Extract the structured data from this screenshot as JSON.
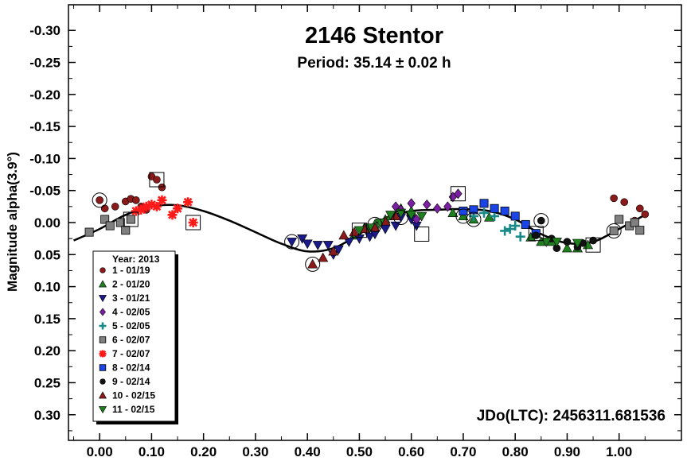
{
  "chart_data": {
    "type": "scatter",
    "title": "2146 Stentor",
    "subtitle": "Period: 35.14 ± 0.02 h",
    "ylabel": "Magnitude alpha(3.9°)",
    "xlabel": "",
    "annotation": "JDo(LTC): 2456311.681536",
    "xlim": [
      -0.06,
      1.12
    ],
    "ylim": [
      -0.34,
      0.34
    ],
    "y_inverted": true,
    "x_ticks": [
      "0.00",
      "0.10",
      "0.20",
      "0.30",
      "0.40",
      "0.50",
      "0.60",
      "0.70",
      "0.80",
      "0.90",
      "1.00"
    ],
    "x_tick_values": [
      0,
      0.1,
      0.2,
      0.3,
      0.4,
      0.5,
      0.6,
      0.7,
      0.8,
      0.9,
      1.0
    ],
    "y_ticks": [
      "-0.30",
      "-0.25",
      "-0.20",
      "-0.15",
      "-0.10",
      "-0.05",
      "0.00",
      "0.05",
      "0.10",
      "0.15",
      "0.20",
      "0.25",
      "0.30"
    ],
    "y_tick_values": [
      -0.3,
      -0.25,
      -0.2,
      -0.15,
      -0.1,
      -0.05,
      0,
      0.05,
      0.1,
      0.15,
      0.2,
      0.25,
      0.3
    ],
    "legend": {
      "title": "Year: 2013",
      "placement": "bottom-left",
      "entries": [
        {
          "label": "1 - 01/19",
          "symbol": "circle",
          "color": "#8B1A1A"
        },
        {
          "label": "2 - 01/20",
          "symbol": "triangle-up",
          "color": "#1E7F1E"
        },
        {
          "label": "3 - 01/21",
          "symbol": "triangle-down",
          "color": "#1A1A8B"
        },
        {
          "label": "4 - 02/05",
          "symbol": "diamond",
          "color": "#7B1FA2"
        },
        {
          "label": "5 - 02/05",
          "symbol": "plus",
          "color": "#178A8A"
        },
        {
          "label": "6 - 02/07",
          "symbol": "square",
          "color": "#808080"
        },
        {
          "label": "7 - 02/07",
          "symbol": "asterisk",
          "color": "#FF1A1A"
        },
        {
          "label": "8 - 02/14",
          "symbol": "square",
          "color": "#1A44E6"
        },
        {
          "label": "9 - 02/14",
          "symbol": "circle",
          "color": "#111111"
        },
        {
          "label": "10 - 02/15",
          "symbol": "triangle-up",
          "color": "#8B1A1A"
        },
        {
          "label": "11 - 02/15",
          "symbol": "triangle-down",
          "color": "#1E7F1E"
        }
      ]
    },
    "fit_curve": {
      "x": [
        -0.05,
        0.0,
        0.05,
        0.1,
        0.15,
        0.2,
        0.25,
        0.3,
        0.35,
        0.4,
        0.45,
        0.5,
        0.55,
        0.6,
        0.65,
        0.7,
        0.75,
        0.8,
        0.85,
        0.9,
        0.95,
        1.0,
        1.05
      ],
      "y": [
        0.028,
        0.01,
        -0.012,
        -0.025,
        -0.027,
        -0.018,
        -0.003,
        0.015,
        0.033,
        0.045,
        0.04,
        0.018,
        -0.007,
        -0.018,
        -0.02,
        -0.021,
        -0.018,
        -0.005,
        0.018,
        0.032,
        0.03,
        0.01,
        -0.012
      ]
    },
    "series": [
      {
        "name": "1 - 01/19",
        "points": [
          [
            0.0,
            -0.035
          ],
          [
            0.01,
            -0.022
          ],
          [
            0.05,
            -0.033
          ],
          [
            0.06,
            -0.037
          ],
          [
            0.07,
            -0.035
          ],
          [
            0.08,
            -0.025
          ],
          [
            0.09,
            -0.02
          ],
          [
            0.1,
            -0.072
          ],
          [
            0.11,
            -0.067
          ],
          [
            0.12,
            -0.055
          ],
          [
            0.03,
            -0.025
          ],
          [
            0.99,
            -0.038
          ],
          [
            1.01,
            -0.032
          ],
          [
            1.04,
            -0.022
          ],
          [
            1.05,
            -0.013
          ],
          [
            1.03,
            -0.003
          ]
        ]
      },
      {
        "name": "2 - 01/20",
        "points": [
          [
            0.49,
            0.02
          ],
          [
            0.51,
            0.008
          ],
          [
            0.53,
            0.003
          ],
          [
            0.55,
            -0.005
          ],
          [
            0.56,
            -0.01
          ],
          [
            0.58,
            -0.022
          ],
          [
            0.6,
            -0.018
          ],
          [
            0.68,
            -0.015
          ],
          [
            0.7,
            -0.01
          ],
          [
            0.72,
            -0.005
          ],
          [
            0.75,
            -0.008
          ],
          [
            0.83,
            0.023
          ],
          [
            0.85,
            0.03
          ],
          [
            0.87,
            0.03
          ],
          [
            0.9,
            0.04
          ],
          [
            0.92,
            0.04
          ],
          [
            0.94,
            0.035
          ]
        ]
      },
      {
        "name": "3 - 01/21",
        "points": [
          [
            0.37,
            0.03
          ],
          [
            0.39,
            0.025
          ],
          [
            0.4,
            0.033
          ],
          [
            0.42,
            0.035
          ],
          [
            0.44,
            0.035
          ],
          [
            0.45,
            0.05
          ],
          [
            0.46,
            0.042
          ],
          [
            0.48,
            0.03
          ],
          [
            0.5,
            0.025
          ],
          [
            0.52,
            0.022
          ],
          [
            0.53,
            0.018
          ],
          [
            0.55,
            0.01
          ],
          [
            0.57,
            0.005
          ],
          [
            0.58,
            -0.008
          ],
          [
            0.6,
            -0.005
          ],
          [
            0.61,
            0.005
          ]
        ]
      },
      {
        "name": "4 - 02/05",
        "points": [
          [
            0.57,
            -0.025
          ],
          [
            0.58,
            -0.02
          ],
          [
            0.6,
            -0.03
          ],
          [
            0.63,
            -0.028
          ],
          [
            0.65,
            -0.022
          ],
          [
            0.67,
            -0.025
          ],
          [
            0.68,
            -0.04
          ],
          [
            0.69,
            -0.045
          ],
          [
            0.61,
            -0.005
          ]
        ]
      },
      {
        "name": "5 - 02/05",
        "points": [
          [
            0.72,
            -0.01
          ],
          [
            0.74,
            -0.015
          ],
          [
            0.76,
            -0.01
          ],
          [
            0.78,
            0.013
          ],
          [
            0.79,
            0.01
          ],
          [
            0.8,
            0.005
          ],
          [
            0.81,
            0.022
          ]
        ]
      },
      {
        "name": "6 - 02/07",
        "points": [
          [
            -0.02,
            0.015
          ],
          [
            0.01,
            -0.005
          ],
          [
            0.02,
            0.005
          ],
          [
            0.04,
            0.0
          ],
          [
            0.05,
            0.012
          ],
          [
            0.06,
            -0.005
          ],
          [
            0.99,
            0.013
          ],
          [
            1.0,
            -0.005
          ],
          [
            1.02,
            0.005
          ],
          [
            1.03,
            0.0
          ],
          [
            1.04,
            0.012
          ]
        ]
      },
      {
        "name": "7 - 02/07",
        "points": [
          [
            0.07,
            -0.018
          ],
          [
            0.08,
            -0.02
          ],
          [
            0.09,
            -0.025
          ],
          [
            0.1,
            -0.028
          ],
          [
            0.11,
            -0.025
          ],
          [
            0.12,
            -0.035
          ],
          [
            0.14,
            -0.012
          ],
          [
            0.15,
            -0.022
          ],
          [
            0.17,
            -0.032
          ],
          [
            0.18,
            0.0
          ]
        ]
      },
      {
        "name": "8 - 02/14",
        "points": [
          [
            0.7,
            -0.018
          ],
          [
            0.72,
            -0.02
          ],
          [
            0.74,
            -0.03
          ],
          [
            0.76,
            -0.022
          ],
          [
            0.78,
            -0.018
          ],
          [
            0.8,
            -0.01
          ],
          [
            0.82,
            0.003
          ],
          [
            0.84,
            0.017
          ]
        ]
      },
      {
        "name": "9 - 02/14",
        "points": [
          [
            0.84,
            0.02
          ],
          [
            0.85,
            -0.003
          ],
          [
            0.87,
            0.025
          ],
          [
            0.88,
            0.04
          ],
          [
            0.9,
            0.03
          ],
          [
            0.92,
            0.038
          ],
          [
            0.93,
            0.032
          ],
          [
            0.95,
            0.028
          ]
        ]
      },
      {
        "name": "10 - 02/15",
        "points": [
          [
            0.41,
            0.065
          ],
          [
            0.43,
            0.055
          ],
          [
            0.45,
            0.045
          ],
          [
            0.47,
            0.02
          ],
          [
            0.49,
            0.015
          ],
          [
            0.51,
            0.01
          ],
          [
            0.53,
            0.008
          ],
          [
            0.55,
            -0.002
          ],
          [
            0.57,
            -0.01
          ]
        ]
      },
      {
        "name": "11 - 02/15",
        "points": [
          [
            0.5,
            0.012
          ],
          [
            0.52,
            0.008
          ],
          [
            0.54,
            0.0
          ],
          [
            0.56,
            -0.012
          ],
          [
            0.58,
            -0.015
          ],
          [
            0.6,
            -0.012
          ],
          [
            0.62,
            -0.01
          ],
          [
            0.86,
            0.03
          ],
          [
            0.88,
            0.03
          ],
          [
            0.92,
            0.032
          ]
        ]
      }
    ],
    "highlighted_points": [
      {
        "x": 0.0,
        "y": -0.035,
        "shape": "circle"
      },
      {
        "x": 0.11,
        "y": -0.067,
        "shape": "square"
      },
      {
        "x": 0.18,
        "y": 0.0,
        "shape": "square"
      },
      {
        "x": 0.06,
        "y": -0.005,
        "shape": "square"
      },
      {
        "x": 0.37,
        "y": 0.03,
        "shape": "circle"
      },
      {
        "x": 0.41,
        "y": 0.065,
        "shape": "circle"
      },
      {
        "x": 0.5,
        "y": 0.012,
        "shape": "square"
      },
      {
        "x": 0.53,
        "y": 0.003,
        "shape": "circle"
      },
      {
        "x": 0.58,
        "y": -0.008,
        "shape": "circle"
      },
      {
        "x": 0.62,
        "y": 0.018,
        "shape": "square"
      },
      {
        "x": 0.69,
        "y": -0.045,
        "shape": "square"
      },
      {
        "x": 0.7,
        "y": -0.01,
        "shape": "circle"
      },
      {
        "x": 0.72,
        "y": -0.005,
        "shape": "circle"
      },
      {
        "x": 0.85,
        "y": -0.003,
        "shape": "circle"
      },
      {
        "x": 0.84,
        "y": 0.017,
        "shape": "square"
      },
      {
        "x": 0.95,
        "y": 0.035,
        "shape": "square"
      },
      {
        "x": 0.99,
        "y": 0.013,
        "shape": "circle"
      }
    ]
  }
}
